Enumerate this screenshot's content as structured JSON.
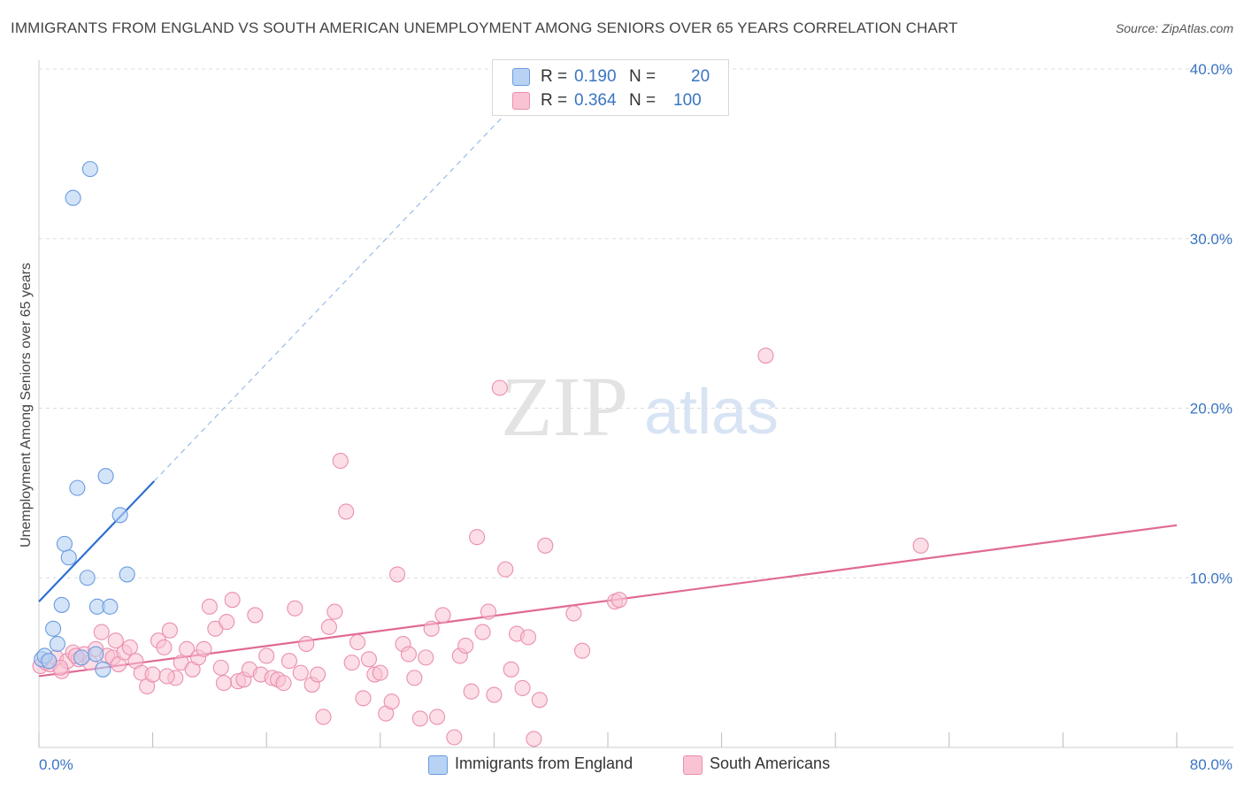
{
  "title": "IMMIGRANTS FROM ENGLAND VS SOUTH AMERICAN UNEMPLOYMENT AMONG SENIORS OVER 65 YEARS CORRELATION CHART",
  "source": "Source: ZipAtlas.com",
  "watermark": {
    "zip": "ZIP",
    "atlas": "atlas"
  },
  "legend": {
    "rows": [
      {
        "r_label": "R =",
        "r_value": "0.190",
        "n_label": "N =",
        "n_value": "20"
      },
      {
        "r_label": "R =",
        "r_value": "0.364",
        "n_label": "N =",
        "n_value": "100"
      }
    ]
  },
  "bottom_legend": {
    "england": "Immigrants from England",
    "south": "South Americans"
  },
  "colors": {
    "england_fill": "#b8d2f4",
    "england_stroke": "#6a9be0",
    "england_line": "#2f6fd0",
    "south_fill": "#f9c3d3",
    "south_stroke": "#ea8fae",
    "south_line": "#e06a94",
    "tick_label": "#3a74c4",
    "grid": "#dddddd"
  },
  "chart_data": {
    "type": "scatter",
    "title": "IMMIGRANTS FROM ENGLAND VS SOUTH AMERICAN UNEMPLOYMENT AMONG SENIORS OVER 65 YEARS CORRELATION CHART",
    "xlabel": "",
    "ylabel": "Unemployment Among Seniors over 65 years",
    "xlim": [
      0,
      80
    ],
    "ylim": [
      0,
      40
    ],
    "x_tick_labels": {
      "left": "0.0%",
      "right": "80.0%"
    },
    "y_ticks": [
      {
        "value": 10,
        "label": "10.0%"
      },
      {
        "value": 20,
        "label": "20.0%"
      },
      {
        "value": 30,
        "label": "30.0%"
      },
      {
        "value": 40,
        "label": "40.0%"
      }
    ],
    "series": [
      {
        "name": "Immigrants from England",
        "r": 0.19,
        "n": 20,
        "trend": {
          "x0": 0,
          "y0": 8.6,
          "x1": 8.1,
          "y1": 15.7,
          "dashed_to_x": 33
        },
        "points": [
          [
            0.2,
            5.2
          ],
          [
            0.4,
            5.4
          ],
          [
            0.7,
            5.1
          ],
          [
            1.0,
            7.0
          ],
          [
            1.3,
            6.1
          ],
          [
            1.6,
            8.4
          ],
          [
            1.8,
            12.0
          ],
          [
            2.1,
            11.2
          ],
          [
            2.7,
            15.3
          ],
          [
            3.4,
            10.0
          ],
          [
            3.6,
            34.1
          ],
          [
            4.1,
            8.3
          ],
          [
            4.5,
            4.6
          ],
          [
            4.7,
            16.0
          ],
          [
            5.0,
            8.3
          ],
          [
            5.7,
            13.7
          ],
          [
            6.2,
            10.2
          ],
          [
            2.4,
            32.4
          ],
          [
            3.0,
            5.3
          ],
          [
            4.0,
            5.5
          ]
        ]
      },
      {
        "name": "South Americans",
        "r": 0.364,
        "n": 100,
        "trend": {
          "x0": 0,
          "y0": 4.2,
          "x1": 80,
          "y1": 13.1
        },
        "points": [
          [
            0.1,
            4.8
          ],
          [
            0.5,
            5.0
          ],
          [
            0.8,
            4.9
          ],
          [
            1.2,
            5.3
          ],
          [
            1.6,
            4.5
          ],
          [
            2.0,
            5.1
          ],
          [
            2.4,
            5.6
          ],
          [
            2.8,
            5.2
          ],
          [
            3.2,
            5.5
          ],
          [
            3.6,
            5.0
          ],
          [
            4.0,
            5.8
          ],
          [
            4.4,
            6.8
          ],
          [
            4.8,
            5.4
          ],
          [
            5.2,
            5.3
          ],
          [
            5.6,
            4.9
          ],
          [
            6.0,
            5.6
          ],
          [
            6.4,
            5.9
          ],
          [
            6.8,
            5.1
          ],
          [
            7.2,
            4.4
          ],
          [
            7.6,
            3.6
          ],
          [
            8.0,
            4.3
          ],
          [
            8.4,
            6.3
          ],
          [
            8.8,
            5.9
          ],
          [
            9.2,
            6.9
          ],
          [
            9.6,
            4.1
          ],
          [
            10.0,
            5.0
          ],
          [
            10.4,
            5.8
          ],
          [
            10.8,
            4.6
          ],
          [
            11.2,
            5.3
          ],
          [
            11.6,
            5.8
          ],
          [
            12.0,
            8.3
          ],
          [
            12.4,
            7.0
          ],
          [
            12.8,
            4.7
          ],
          [
            13.2,
            7.4
          ],
          [
            13.6,
            8.7
          ],
          [
            14.0,
            3.9
          ],
          [
            14.4,
            4.0
          ],
          [
            14.8,
            4.6
          ],
          [
            15.2,
            7.8
          ],
          [
            15.6,
            4.3
          ],
          [
            16.0,
            5.4
          ],
          [
            16.4,
            4.1
          ],
          [
            16.8,
            4.0
          ],
          [
            17.2,
            3.8
          ],
          [
            17.6,
            5.1
          ],
          [
            18.0,
            8.2
          ],
          [
            18.4,
            4.4
          ],
          [
            18.8,
            6.1
          ],
          [
            19.2,
            3.7
          ],
          [
            19.6,
            4.3
          ],
          [
            20.0,
            1.8
          ],
          [
            20.4,
            7.1
          ],
          [
            20.8,
            8.0
          ],
          [
            21.2,
            16.9
          ],
          [
            21.6,
            13.9
          ],
          [
            22.0,
            5.0
          ],
          [
            22.4,
            6.2
          ],
          [
            22.8,
            2.9
          ],
          [
            23.2,
            5.2
          ],
          [
            23.6,
            4.3
          ],
          [
            24.0,
            4.4
          ],
          [
            24.4,
            2.0
          ],
          [
            24.8,
            2.7
          ],
          [
            25.2,
            10.2
          ],
          [
            25.6,
            6.1
          ],
          [
            26.0,
            5.5
          ],
          [
            26.4,
            4.1
          ],
          [
            26.8,
            1.7
          ],
          [
            27.2,
            5.3
          ],
          [
            27.6,
            7.0
          ],
          [
            28.0,
            1.8
          ],
          [
            28.4,
            7.8
          ],
          [
            29.2,
            0.6
          ],
          [
            29.6,
            5.4
          ],
          [
            30.0,
            6.0
          ],
          [
            30.4,
            3.3
          ],
          [
            30.8,
            12.4
          ],
          [
            31.2,
            6.8
          ],
          [
            31.6,
            8.0
          ],
          [
            32.0,
            3.1
          ],
          [
            32.4,
            21.2
          ],
          [
            32.8,
            10.5
          ],
          [
            33.2,
            4.6
          ],
          [
            33.6,
            6.7
          ],
          [
            34.0,
            3.5
          ],
          [
            34.4,
            6.5
          ],
          [
            34.8,
            0.5
          ],
          [
            35.2,
            2.8
          ],
          [
            35.6,
            11.9
          ],
          [
            37.6,
            7.9
          ],
          [
            38.2,
            5.7
          ],
          [
            40.5,
            8.6
          ],
          [
            40.8,
            8.7
          ],
          [
            51.1,
            23.1
          ],
          [
            62.0,
            11.9
          ],
          [
            1.5,
            4.7
          ],
          [
            2.6,
            5.4
          ],
          [
            5.4,
            6.3
          ],
          [
            9.0,
            4.2
          ],
          [
            13.0,
            3.8
          ]
        ]
      }
    ]
  }
}
